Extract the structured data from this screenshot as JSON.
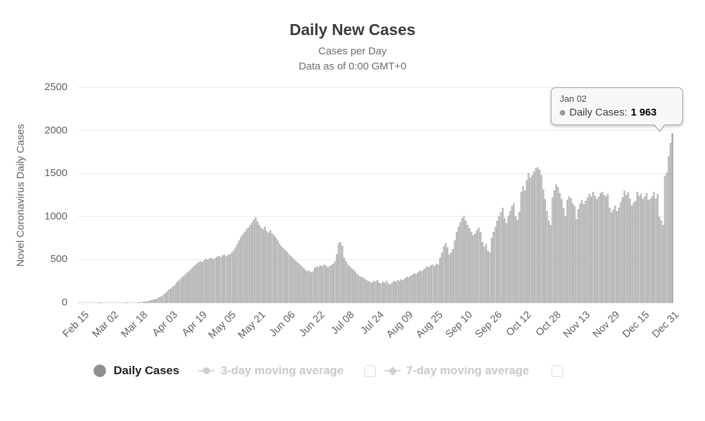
{
  "header": {
    "title": "Daily New Cases",
    "subtitle1": "Cases per Day",
    "subtitle2": "Data as of 0:00 GMT+0"
  },
  "tooltip": {
    "date": "Jan 02",
    "series_label": "Daily Cases:",
    "value": "1 963"
  },
  "legend": {
    "items": [
      {
        "label": "Daily Cases",
        "marker": "circle",
        "active": true
      },
      {
        "label": "3-day moving average",
        "marker": "line-circle",
        "active": false,
        "checkbox": "unchecked"
      },
      {
        "label": "7-day moving average",
        "marker": "line-diamond",
        "active": false,
        "checkbox": "unchecked"
      }
    ]
  },
  "colors": {
    "title": "#3b3b3b",
    "subtitle": "#6b6b6b",
    "axis-text": "#606060",
    "grid": "#e9e9e9",
    "baseline": "#ccd6eb",
    "bar-fill": "#c8c8c8",
    "bar-stroke": "#9b9b9b",
    "bar-highlight": "#a9a9a9",
    "tooltip-bg": "#f8f8f8",
    "tooltip-border": "#a6a6a6",
    "legend-active": "#1f1f1f",
    "legend-inactive": "#c9c9c9",
    "legend-marker-active": "#8f8f8f"
  },
  "chart_data": {
    "type": "bar",
    "title": "Daily New Cases",
    "subtitle": [
      "Cases per Day",
      "Data as of 0:00 GMT+0"
    ],
    "xlabel": "",
    "ylabel": "Novel Coronavirus Daily Cases",
    "ylim": [
      0,
      2500
    ],
    "yticks": [
      0,
      500,
      1000,
      1500,
      2000,
      2500
    ],
    "grid": "horizontal",
    "legend_position": "bottom",
    "x_start": "Feb 15",
    "x_end": "Jan 02",
    "x_tick_interval_days": 16,
    "x_tick_labels": [
      "Feb 15",
      "Mar 02",
      "Mar 18",
      "Apr 03",
      "Apr 19",
      "May 05",
      "May 21",
      "Jun 06",
      "Jun 22",
      "Jul 08",
      "Jul 24",
      "Aug 09",
      "Aug 25",
      "Sep 10",
      "Sep 26",
      "Oct 12",
      "Oct 28",
      "Nov 13",
      "Nov 29",
      "Dec 15",
      "Dec 31"
    ],
    "highlight": {
      "date": "Jan 02",
      "series": "Daily Cases",
      "value": 1963
    },
    "series": [
      {
        "name": "Daily Cases",
        "values": [
          0,
          0,
          0,
          0,
          0,
          0,
          0,
          0,
          0,
          0,
          0,
          3,
          0,
          0,
          0,
          0,
          0,
          0,
          0,
          0,
          0,
          0,
          0,
          0,
          0,
          0,
          4,
          0,
          0,
          0,
          0,
          0,
          0,
          6,
          0,
          8,
          12,
          10,
          18,
          25,
          30,
          42,
          38,
          55,
          60,
          75,
          90,
          110,
          130,
          150,
          160,
          185,
          200,
          230,
          250,
          270,
          290,
          310,
          330,
          350,
          370,
          390,
          410,
          430,
          450,
          465,
          480,
          470,
          490,
          505,
          495,
          510,
          520,
          500,
          515,
          530,
          540,
          525,
          545,
          555,
          535,
          550,
          560,
          580,
          600,
          640,
          680,
          720,
          760,
          790,
          820,
          850,
          870,
          900,
          930,
          960,
          990,
          940,
          900,
          870,
          850,
          880,
          830,
          810,
          840,
          800,
          780,
          750,
          720,
          680,
          650,
          630,
          610,
          590,
          560,
          540,
          520,
          500,
          480,
          460,
          440,
          420,
          400,
          380,
          360,
          370,
          350,
          360,
          400,
          420,
          410,
          430,
          420,
          440,
          430,
          410,
          420,
          430,
          450,
          480,
          560,
          690,
          700,
          660,
          520,
          480,
          440,
          420,
          400,
          380,
          360,
          330,
          310,
          300,
          290,
          280,
          260,
          250,
          240,
          230,
          250,
          240,
          260,
          230,
          220,
          240,
          230,
          250,
          220,
          210,
          230,
          250,
          240,
          260,
          250,
          270,
          260,
          280,
          300,
          290,
          310,
          320,
          340,
          330,
          350,
          370,
          360,
          380,
          400,
          420,
          410,
          430,
          440,
          420,
          450,
          440,
          520,
          580,
          650,
          690,
          640,
          560,
          580,
          620,
          720,
          820,
          880,
          930,
          980,
          1000,
          950,
          900,
          860,
          820,
          780,
          800,
          840,
          870,
          820,
          700,
          650,
          680,
          600,
          580,
          750,
          820,
          880,
          950,
          1000,
          1050,
          1100,
          980,
          920,
          1000,
          1060,
          1120,
          1150,
          1000,
          960,
          1050,
          1280,
          1350,
          1300,
          1420,
          1500,
          1450,
          1480,
          1520,
          1560,
          1570,
          1540,
          1480,
          1310,
          1200,
          1060,
          950,
          900,
          1220,
          1300,
          1370,
          1340,
          1270,
          1200,
          1100,
          1005,
          1190,
          1230,
          1210,
          1150,
          1120,
          965,
          1085,
          1150,
          1190,
          1140,
          1180,
          1220,
          1260,
          1230,
          1283,
          1240,
          1200,
          1230,
          1270,
          1283,
          1250,
          1230,
          1260,
          1100,
          1045,
          1080,
          1125,
          1060,
          1100,
          1164,
          1220,
          1297,
          1250,
          1280,
          1204,
          1125,
          1160,
          1178,
          1283,
          1240,
          1260,
          1200,
          1230,
          1270,
          1190,
          1204,
          1230,
          1283,
          1204,
          1260,
          992,
          950,
          900,
          1470,
          1508,
          1700,
          1850,
          1963
        ]
      }
    ]
  }
}
